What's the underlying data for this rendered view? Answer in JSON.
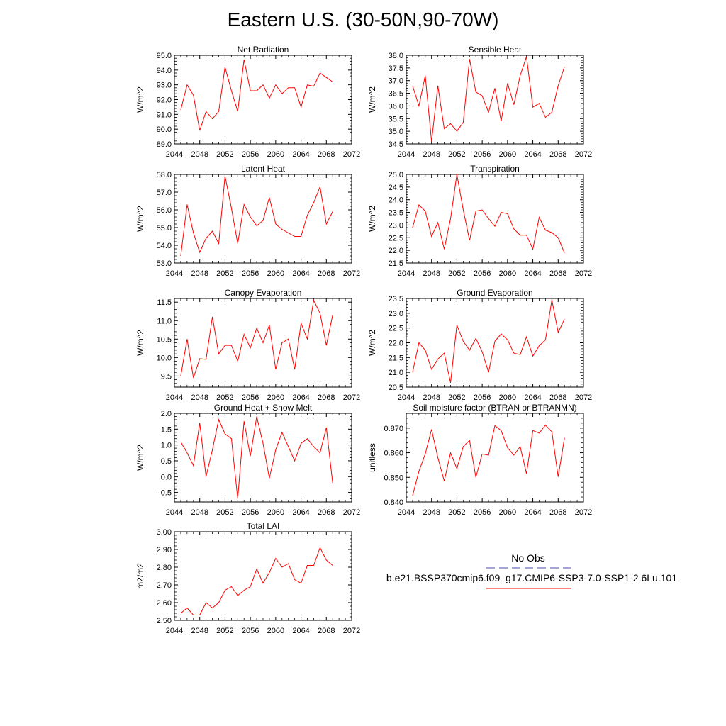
{
  "page_title": "Eastern U.S. (30-50N,90-70W)",
  "legend": {
    "items": [
      {
        "label": "No Obs",
        "color": "#4a4ab4",
        "dash": true
      },
      {
        "label": "b.e21.BSSP370cmip6.f09_g17.CMIP6-SSP3-7.0-SSP1-2.6Lu.101",
        "color": "#ff0000",
        "dash": false
      }
    ]
  },
  "chart_data": [
    {
      "type": "line",
      "title": "Net Radiation",
      "ylabel": "W/m^2",
      "xlim": [
        2044,
        2072
      ],
      "ylim": [
        89.0,
        95.0
      ],
      "xticks": [
        2044,
        2048,
        2052,
        2056,
        2060,
        2064,
        2068,
        2072
      ],
      "yticks": [
        "89.0",
        "90.0",
        "91.0",
        "92.0",
        "93.0",
        "94.0",
        "95.0"
      ],
      "series": [
        {
          "color": "#ff0000",
          "x": [
            2045,
            2046,
            2047,
            2048,
            2049,
            2050,
            2051,
            2052,
            2053,
            2054,
            2055,
            2056,
            2057,
            2058,
            2059,
            2060,
            2061,
            2062,
            2063,
            2064,
            2065,
            2066,
            2067,
            2068,
            2069
          ],
          "y": [
            91.3,
            93.0,
            92.3,
            89.9,
            91.2,
            90.7,
            91.2,
            94.2,
            92.6,
            91.2,
            94.7,
            92.6,
            92.6,
            93.0,
            92.1,
            93.0,
            92.4,
            92.8,
            92.8,
            91.5,
            93.0,
            92.9,
            93.8,
            93.5,
            93.2
          ]
        }
      ]
    },
    {
      "type": "line",
      "title": "Sensible Heat",
      "ylabel": "W/m^2",
      "xlim": [
        2044,
        2072
      ],
      "ylim": [
        34.5,
        38.0
      ],
      "xticks": [
        2044,
        2048,
        2052,
        2056,
        2060,
        2064,
        2068,
        2072
      ],
      "yticks": [
        "34.5",
        "35.0",
        "35.5",
        "36.0",
        "36.5",
        "37.0",
        "37.5",
        "38.0"
      ],
      "series": [
        {
          "color": "#ff0000",
          "x": [
            2045,
            2046,
            2047,
            2048,
            2049,
            2050,
            2051,
            2052,
            2053,
            2054,
            2055,
            2056,
            2057,
            2058,
            2059,
            2060,
            2061,
            2062,
            2063,
            2064,
            2065,
            2066,
            2067,
            2068,
            2069
          ],
          "y": [
            36.8,
            36.0,
            37.2,
            34.6,
            36.8,
            35.1,
            35.3,
            35.0,
            35.35,
            37.85,
            36.55,
            36.4,
            35.75,
            36.7,
            35.4,
            36.9,
            36.05,
            37.2,
            37.95,
            35.95,
            36.1,
            35.55,
            35.75,
            36.8,
            37.55
          ]
        }
      ]
    },
    {
      "type": "line",
      "title": "Latent Heat",
      "ylabel": "W/m^2",
      "xlim": [
        2044,
        2072
      ],
      "ylim": [
        53.0,
        58.0
      ],
      "xticks": [
        2044,
        2048,
        2052,
        2056,
        2060,
        2064,
        2068,
        2072
      ],
      "yticks": [
        "53.0",
        "54.0",
        "55.0",
        "56.0",
        "57.0",
        "58.0"
      ],
      "series": [
        {
          "color": "#ff0000",
          "x": [
            2045,
            2046,
            2047,
            2048,
            2049,
            2050,
            2051,
            2052,
            2053,
            2054,
            2055,
            2056,
            2057,
            2058,
            2059,
            2060,
            2061,
            2062,
            2063,
            2064,
            2065,
            2066,
            2067,
            2068,
            2069
          ],
          "y": [
            53.4,
            56.3,
            54.7,
            53.6,
            54.4,
            54.8,
            54.1,
            57.9,
            56.1,
            54.1,
            56.3,
            55.6,
            55.1,
            55.4,
            56.7,
            55.2,
            54.9,
            54.7,
            54.5,
            54.5,
            55.7,
            56.4,
            57.3,
            55.2,
            55.9
          ]
        }
      ]
    },
    {
      "type": "line",
      "title": "Transpiration",
      "ylabel": "W/m^2",
      "xlim": [
        2044,
        2072
      ],
      "ylim": [
        21.5,
        25.0
      ],
      "xticks": [
        2044,
        2048,
        2052,
        2056,
        2060,
        2064,
        2068,
        2072
      ],
      "yticks": [
        "21.5",
        "22.0",
        "22.5",
        "23.0",
        "23.5",
        "24.0",
        "24.5",
        "25.0"
      ],
      "series": [
        {
          "color": "#ff0000",
          "x": [
            2045,
            2046,
            2047,
            2048,
            2049,
            2050,
            2051,
            2052,
            2053,
            2054,
            2055,
            2056,
            2057,
            2058,
            2059,
            2060,
            2061,
            2062,
            2063,
            2064,
            2065,
            2066,
            2067,
            2068,
            2069
          ],
          "y": [
            22.9,
            23.8,
            23.55,
            22.55,
            23.1,
            22.05,
            23.25,
            25.0,
            23.6,
            22.4,
            23.55,
            23.6,
            23.25,
            22.95,
            23.5,
            23.45,
            22.85,
            22.6,
            22.6,
            22.05,
            23.3,
            22.8,
            22.7,
            22.5,
            21.9
          ]
        }
      ]
    },
    {
      "type": "line",
      "title": "Canopy Evaporation",
      "ylabel": "W/m^2",
      "xlim": [
        2044,
        2072
      ],
      "ylim": [
        9.2,
        11.6
      ],
      "xticks": [
        2044,
        2048,
        2052,
        2056,
        2060,
        2064,
        2068,
        2072
      ],
      "yticks": [
        "9.5",
        "10.0",
        "10.5",
        "11.0",
        "11.5"
      ],
      "series": [
        {
          "color": "#ff0000",
          "x": [
            2045,
            2046,
            2047,
            2048,
            2049,
            2050,
            2051,
            2052,
            2053,
            2054,
            2055,
            2056,
            2057,
            2058,
            2059,
            2060,
            2061,
            2062,
            2063,
            2064,
            2065,
            2066,
            2067,
            2068,
            2069
          ],
          "y": [
            9.5,
            10.5,
            9.45,
            9.97,
            9.95,
            11.1,
            10.1,
            10.33,
            10.33,
            9.9,
            10.63,
            10.26,
            10.8,
            10.4,
            10.88,
            9.68,
            10.4,
            10.5,
            9.68,
            10.93,
            10.5,
            11.55,
            11.2,
            10.33,
            11.15
          ]
        }
      ]
    },
    {
      "type": "line",
      "title": "Ground Evaporation",
      "ylabel": "W/m^2",
      "xlim": [
        2044,
        2072
      ],
      "ylim": [
        20.5,
        23.5
      ],
      "xticks": [
        2044,
        2048,
        2052,
        2056,
        2060,
        2064,
        2068,
        2072
      ],
      "yticks": [
        "20.5",
        "21.0",
        "21.5",
        "22.0",
        "22.5",
        "23.0",
        "23.5"
      ],
      "series": [
        {
          "color": "#ff0000",
          "x": [
            2045,
            2046,
            2047,
            2048,
            2049,
            2050,
            2051,
            2052,
            2053,
            2054,
            2055,
            2056,
            2057,
            2058,
            2059,
            2060,
            2061,
            2062,
            2063,
            2064,
            2065,
            2066,
            2067,
            2068,
            2069
          ],
          "y": [
            21.0,
            22.0,
            21.75,
            21.1,
            21.45,
            21.65,
            20.65,
            22.6,
            22.05,
            21.75,
            22.15,
            21.7,
            21.0,
            22.05,
            22.3,
            22.1,
            21.65,
            21.6,
            22.2,
            21.55,
            21.9,
            22.1,
            23.45,
            22.35,
            22.8
          ]
        }
      ]
    },
    {
      "type": "line",
      "title": "Ground Heat + Snow Melt",
      "ylabel": "W/m^2",
      "xlim": [
        2044,
        2072
      ],
      "ylim": [
        -0.8,
        2.0
      ],
      "xticks": [
        2044,
        2048,
        2052,
        2056,
        2060,
        2064,
        2068,
        2072
      ],
      "yticks": [
        "-0.5",
        "0.0",
        "0.5",
        "1.0",
        "1.5",
        "2.0"
      ],
      "series": [
        {
          "color": "#ff0000",
          "x": [
            2045,
            2046,
            2047,
            2048,
            2049,
            2050,
            2051,
            2052,
            2053,
            2054,
            2055,
            2056,
            2057,
            2058,
            2059,
            2060,
            2061,
            2062,
            2063,
            2064,
            2065,
            2066,
            2067,
            2068,
            2069
          ],
          "y": [
            1.1,
            0.75,
            0.35,
            1.7,
            0.0,
            0.85,
            1.8,
            1.35,
            1.2,
            -0.7,
            1.75,
            0.65,
            1.9,
            1.05,
            -0.05,
            0.85,
            1.4,
            0.95,
            0.5,
            1.05,
            1.2,
            0.95,
            0.75,
            1.55,
            -0.2
          ]
        }
      ]
    },
    {
      "type": "line",
      "title": "Soil moisture factor (BTRAN or BTRANMN)",
      "ylabel": "unitless",
      "xlim": [
        2044,
        2072
      ],
      "ylim": [
        0.84,
        0.876
      ],
      "xticks": [
        2044,
        2048,
        2052,
        2056,
        2060,
        2064,
        2068,
        2072
      ],
      "yticks": [
        "0.840",
        "0.850",
        "0.860",
        "0.870"
      ],
      "series": [
        {
          "color": "#ff0000",
          "x": [
            2045,
            2046,
            2047,
            2048,
            2049,
            2050,
            2051,
            2052,
            2053,
            2054,
            2055,
            2056,
            2057,
            2058,
            2059,
            2060,
            2061,
            2062,
            2063,
            2064,
            2065,
            2066,
            2067,
            2068,
            2069
          ],
          "y": [
            0.8425,
            0.8525,
            0.8595,
            0.8695,
            0.858,
            0.8485,
            0.86,
            0.8535,
            0.8625,
            0.865,
            0.85,
            0.8595,
            0.859,
            0.871,
            0.869,
            0.862,
            0.859,
            0.8625,
            0.8515,
            0.869,
            0.868,
            0.8712,
            0.8685,
            0.8502,
            0.866
          ]
        }
      ]
    },
    {
      "type": "line",
      "title": "Total LAI",
      "ylabel": "m2/m2",
      "xlim": [
        2044,
        2072
      ],
      "ylim": [
        2.5,
        3.0
      ],
      "xticks": [
        2044,
        2048,
        2052,
        2056,
        2060,
        2064,
        2068,
        2072
      ],
      "yticks": [
        "2.50",
        "2.60",
        "2.70",
        "2.80",
        "2.90",
        "3.00"
      ],
      "series": [
        {
          "color": "#ff0000",
          "x": [
            2045,
            2046,
            2047,
            2048,
            2049,
            2050,
            2051,
            2052,
            2053,
            2054,
            2055,
            2056,
            2057,
            2058,
            2059,
            2060,
            2061,
            2062,
            2063,
            2064,
            2065,
            2066,
            2067,
            2068,
            2069
          ],
          "y": [
            2.54,
            2.57,
            2.53,
            2.53,
            2.6,
            2.57,
            2.6,
            2.67,
            2.69,
            2.64,
            2.67,
            2.69,
            2.79,
            2.71,
            2.77,
            2.85,
            2.8,
            2.82,
            2.73,
            2.71,
            2.81,
            2.81,
            2.91,
            2.84,
            2.81
          ]
        }
      ]
    }
  ]
}
